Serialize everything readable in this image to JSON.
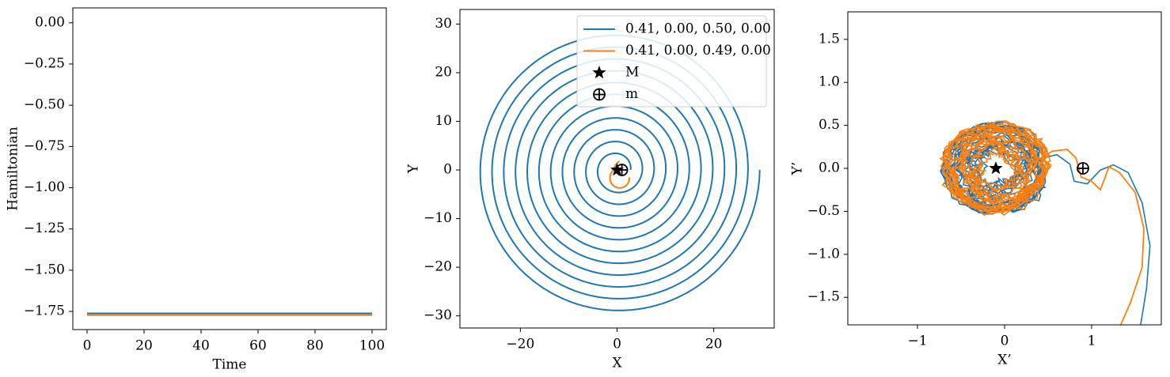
{
  "colors": {
    "series1": "#1f77b4",
    "series2": "#ff7f0e",
    "marker": "#000000"
  },
  "chart_data": [
    {
      "type": "line",
      "xlabel": "Time",
      "ylabel": "Hamiltonian",
      "xlim": [
        -5,
        105
      ],
      "ylim": [
        -1.86,
        0.09
      ],
      "xticks": [
        0,
        20,
        40,
        60,
        80,
        100
      ],
      "xtick_labels": [
        "0",
        "20",
        "40",
        "60",
        "80",
        "100"
      ],
      "yticks": [
        0.0,
        -0.25,
        -0.5,
        -0.75,
        -1.0,
        -1.25,
        -1.5,
        -1.75
      ],
      "ytick_labels": [
        "0.00",
        "−0.25",
        "−0.50",
        "−0.75",
        "−1.00",
        "−1.25",
        "−1.50",
        "−1.75"
      ],
      "series": [
        {
          "x": [
            0,
            100
          ],
          "y": [
            -1.762,
            -1.762
          ]
        },
        {
          "x": [
            0,
            100
          ],
          "y": [
            -1.772,
            -1.772
          ]
        }
      ]
    },
    {
      "type": "line",
      "xlabel": "X",
      "ylabel": "Y",
      "xlim": [
        -32.5,
        32.5
      ],
      "ylim": [
        -32.5,
        33
      ],
      "xticks": [
        -20,
        0,
        20
      ],
      "xtick_labels": [
        "−20",
        "0",
        "20"
      ],
      "yticks": [
        30,
        20,
        10,
        0,
        -10,
        -20,
        -30
      ],
      "ytick_labels": [
        "30",
        "20",
        "10",
        "0",
        "−10",
        "−20",
        "−30"
      ],
      "legend_position": "top-right",
      "legend": [
        {
          "label": "0.41,  0.00,  0.50,  0.00",
          "kind": "line",
          "series": "series1"
        },
        {
          "label": "0.41,  0.00,  0.49,  0.00",
          "kind": "line",
          "series": "series2"
        },
        {
          "label": "M",
          "kind": "star"
        },
        {
          "label": "m",
          "kind": "oplus"
        }
      ],
      "spiral": {
        "turns": 11,
        "radius_start": 2.8,
        "radius_end": 29.5,
        "center": [
          0,
          0
        ]
      },
      "short_orbit_center": [
        0.5,
        0
      ],
      "markers": [
        {
          "name": "M",
          "x": 0,
          "y": 0,
          "symbol": "star"
        },
        {
          "name": "m",
          "x": 1,
          "y": 0,
          "symbol": "oplus"
        }
      ]
    },
    {
      "type": "line",
      "xlabel": "X’",
      "ylabel": "Y’",
      "xlim": [
        -1.8,
        1.8
      ],
      "ylim": [
        -1.82,
        1.82
      ],
      "xticks": [
        -1,
        0,
        1
      ],
      "xtick_labels": [
        "−1",
        "0",
        "1"
      ],
      "yticks": [
        1.5,
        1.0,
        0.5,
        0.0,
        -0.5,
        -1.0,
        -1.5
      ],
      "ytick_labels": [
        "1.5",
        "1.0",
        "0.5",
        "0.0",
        "−0.5",
        "−1.0",
        "−1.5"
      ],
      "markers": [
        {
          "name": "M",
          "x": -0.1,
          "y": 0.0,
          "symbol": "star"
        },
        {
          "name": "m",
          "x": 0.9,
          "y": 0.0,
          "symbol": "oplus"
        }
      ]
    }
  ]
}
